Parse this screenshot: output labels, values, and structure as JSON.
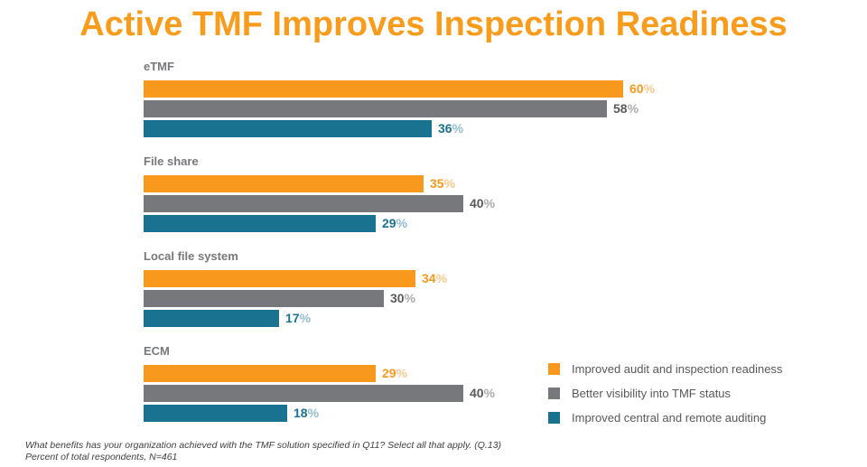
{
  "title": "Active TMF Improves Inspection Readiness",
  "colors": {
    "title": "#F99C1C",
    "category_label": "#77787B",
    "legend_text": "#58595B",
    "footnote_text": "#3F3F3F",
    "background": "#FFFFFF"
  },
  "chart_data": {
    "type": "bar",
    "orientation": "horizontal",
    "title": "Active TMF Improves Inspection Readiness",
    "categories": [
      "eTMF",
      "File share",
      "Local file system",
      "ECM"
    ],
    "series": [
      {
        "name": "Improved audit and inspection readiness",
        "color": "#F8981D",
        "number_color": "#F8981D",
        "percent_color": "#FBC98D",
        "values": [
          60,
          35,
          34,
          29
        ]
      },
      {
        "name": "Better visibility into TMF status",
        "color": "#77787B",
        "number_color": "#595A5C",
        "percent_color": "#ABACAE",
        "values": [
          58,
          40,
          30,
          40
        ]
      },
      {
        "name": "Improved central and remote auditing",
        "color": "#1A7291",
        "number_color": "#1A7291",
        "percent_color": "#8FBDCE",
        "values": [
          36,
          29,
          17,
          18
        ]
      }
    ],
    "value_suffix": "%",
    "xlim": [
      0,
      65
    ],
    "grid": false,
    "axis_labels_shown": false,
    "value_labels_shown": true,
    "legend_position": "bottom-right"
  },
  "footnotes": {
    "line1": "What benefits has your organization achieved with the TMF solution specified in Q11? Select all that apply. (Q.13)",
    "line2": "Percent of total respondents, N=461"
  }
}
